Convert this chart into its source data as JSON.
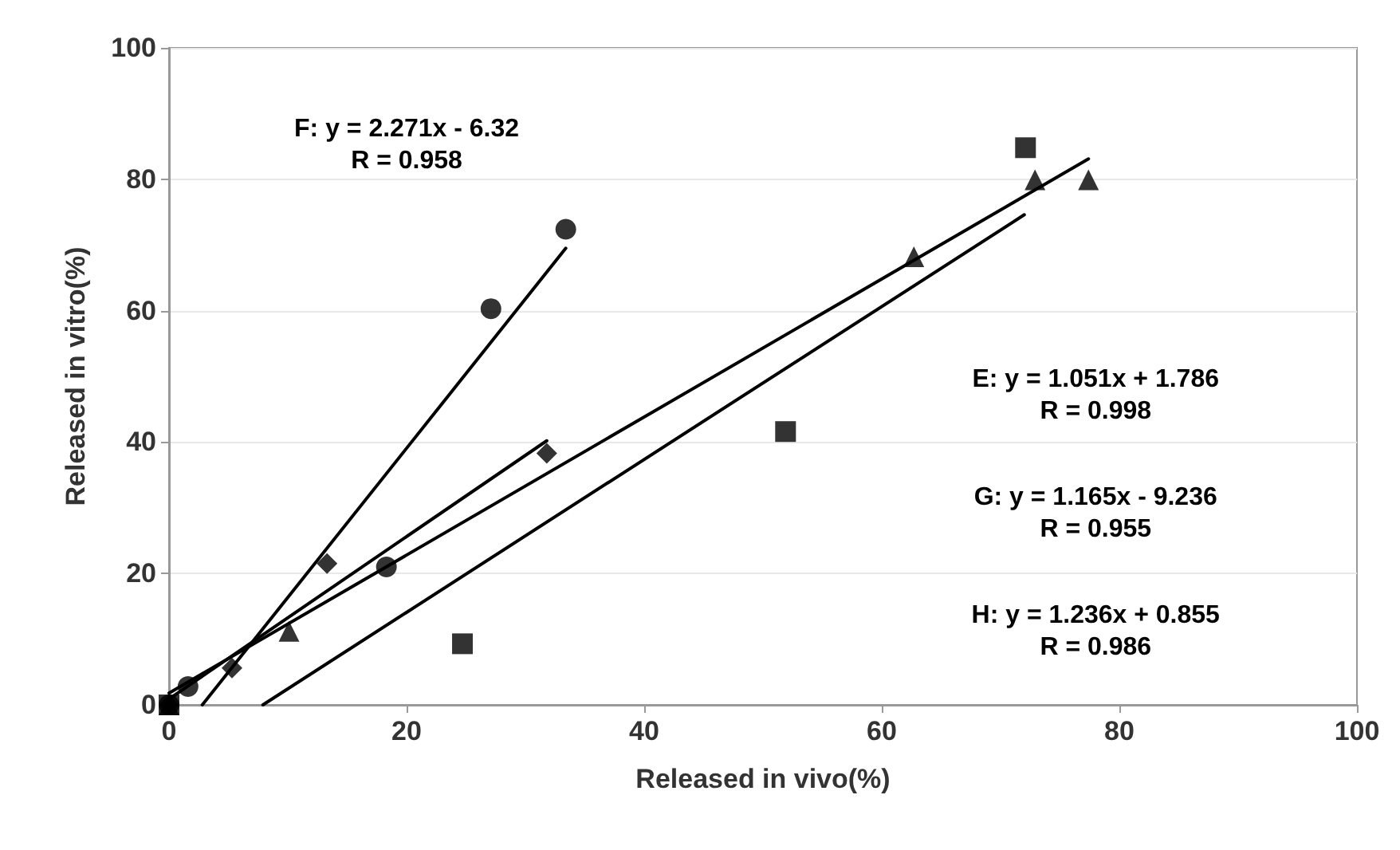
{
  "chart_data": {
    "type": "scatter",
    "xlabel": "Released in vivo(%)",
    "ylabel": "Released in vitro(%)",
    "xlim": [
      0,
      100
    ],
    "xticks": [
      0,
      20,
      40,
      60,
      80,
      100
    ],
    "ylim": [
      0,
      100
    ],
    "yticks": [
      0,
      20,
      40,
      60,
      80,
      100
    ],
    "grid": "y",
    "series": [
      {
        "color": "#000000",
        "marker": "circle",
        "x": [
          0,
          1.6,
          18.3,
          27.1,
          33.4
        ],
        "values": [
          0,
          2.8,
          21,
          60.3,
          72.4
        ]
      },
      {
        "color": "#000000",
        "marker": "diamond",
        "x": [
          0,
          5.3,
          13.3,
          31.8
        ],
        "values": [
          0,
          5.6,
          21.5,
          38.3
        ]
      },
      {
        "color": "#000000",
        "marker": "triangle",
        "x": [
          0,
          10.1,
          62.7,
          72.9,
          77.4
        ],
        "values": [
          0,
          11.2,
          68.2,
          79.9,
          79.9
        ]
      },
      {
        "color": "#000000",
        "marker": "square",
        "x": [
          0,
          24.7,
          51.9,
          72.1
        ],
        "values": [
          0,
          9.3,
          41.6,
          84.8
        ]
      },
      {
        "type": "line",
        "color": "#000000",
        "marker": "none",
        "line_style": "solid",
        "x": [
          2.8,
          33.4
        ],
        "values": [
          0,
          69.5
        ]
      },
      {
        "type": "line",
        "color": "#000000",
        "marker": "none",
        "line_style": "solid",
        "x": [
          0,
          77.4
        ],
        "values": [
          1.8,
          83.1
        ]
      },
      {
        "type": "line",
        "color": "#000000",
        "marker": "none",
        "line_style": "solid",
        "x": [
          7.9,
          72
        ],
        "values": [
          0,
          74.6
        ]
      },
      {
        "type": "line",
        "color": "#000000",
        "marker": "none",
        "line_style": "solid",
        "x": [
          0,
          31.8
        ],
        "values": [
          0.9,
          40.2
        ]
      }
    ],
    "annotations": [
      "F: y = 2.271x - 6.32\nR = 0.958",
      "E: y = 1.051x + 1.786\nR = 0.998",
      "G: y = 1.165x - 9.236\nR = 0.955",
      "H: y = 1.236x + 0.855\nR = 0.986"
    ]
  }
}
